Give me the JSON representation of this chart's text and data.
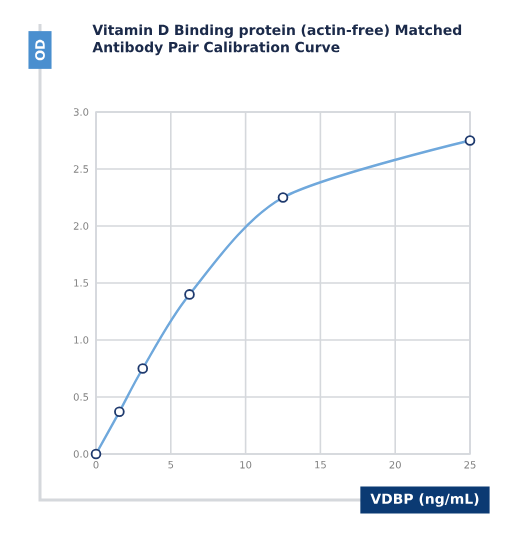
{
  "chart_data": {
    "type": "line",
    "title": "Vitamin D Binding protein (actin-free) Matched Antibody Pair Calibration Curve",
    "xlabel": "VDBP (ng/mL)",
    "ylabel": "OD",
    "x": [
      0,
      1.5625,
      3.125,
      6.25,
      12.5,
      25
    ],
    "series": [
      {
        "color": "#6fa8dc",
        "values": [
          0,
          0.37,
          0.75,
          1.4,
          2.25,
          2.75
        ]
      }
    ],
    "xlim": [
      0,
      25
    ],
    "xticks": [
      0,
      5,
      10,
      15,
      20,
      25
    ],
    "ylim": [
      0,
      3
    ],
    "yticks": [
      {
        "value": 0,
        "label": "0.0"
      },
      {
        "value": 0.5,
        "label": "0.5"
      },
      {
        "value": 1,
        "label": "1.0"
      },
      {
        "value": 1.5,
        "label": "1.5"
      },
      {
        "value": 2,
        "label": "2.0"
      },
      {
        "value": 2.5,
        "label": "2.5"
      },
      {
        "value": 3,
        "label": "3.0"
      }
    ],
    "grid": true,
    "marker": "circle",
    "line_style": "solid"
  }
}
